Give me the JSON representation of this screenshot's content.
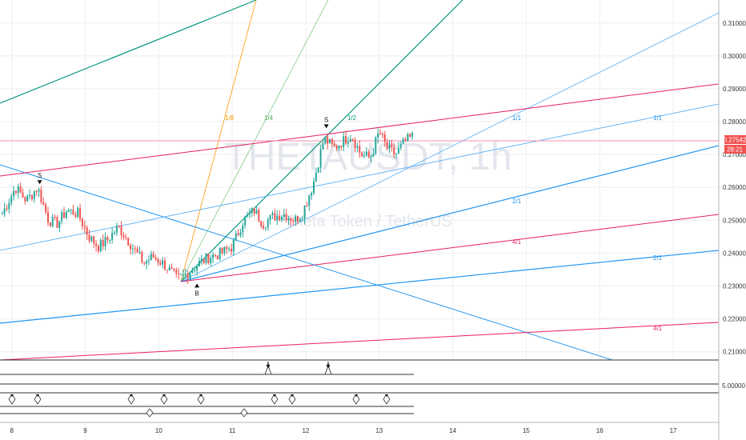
{
  "watermark": {
    "symbol": "THETAUSDT, 1h",
    "description": "Theta Token / TetherUS"
  },
  "price_axis": {
    "current_price": "0.27542",
    "countdown": "28:21",
    "oscillator_tick": "5.00000"
  },
  "colors": {
    "up": "#26a69a",
    "down": "#ef5350",
    "blue_line": "#2196f3",
    "light_blue": "#64b5f6",
    "red_line": "#e91e63",
    "orange_line": "#ff9800",
    "green_line": "#089981",
    "price_badge": "#f05350"
  },
  "chart_data": {
    "type": "candlestick",
    "y_ticks": [
      "0.31000",
      "0.30000",
      "0.29000",
      "0.28000",
      "0.27000",
      "0.26000",
      "0.25000",
      "0.24000",
      "0.23000",
      "0.22000",
      "0.21000"
    ],
    "ylim": [
      0.2075,
      0.317
    ],
    "x_ticks": [
      "8",
      "9",
      "10",
      "11",
      "12",
      "13",
      "14",
      "15",
      "16",
      "17"
    ],
    "x_range": [
      7.84,
      17.62
    ],
    "series": [
      {
        "points": [
          [
            7.87,
            0.252
          ],
          [
            8.05,
            0.26
          ],
          [
            8.2,
            0.256
          ],
          [
            8.35,
            0.26
          ],
          [
            8.5,
            0.25
          ],
          [
            8.62,
            0.249
          ],
          [
            8.75,
            0.253
          ],
          [
            8.9,
            0.252
          ],
          [
            9.05,
            0.245
          ],
          [
            9.18,
            0.242
          ],
          [
            9.3,
            0.244
          ],
          [
            9.45,
            0.248
          ],
          [
            9.58,
            0.244
          ],
          [
            9.7,
            0.24
          ],
          [
            9.8,
            0.237
          ],
          [
            9.92,
            0.239
          ],
          [
            10.05,
            0.237
          ],
          [
            10.18,
            0.234
          ],
          [
            10.25,
            0.232
          ],
          [
            10.4,
            0.234
          ],
          [
            10.55,
            0.237
          ],
          [
            10.7,
            0.239
          ],
          [
            10.85,
            0.24
          ],
          [
            11.0,
            0.242
          ],
          [
            11.15,
            0.25
          ],
          [
            11.3,
            0.253
          ],
          [
            11.42,
            0.249
          ],
          [
            11.55,
            0.251
          ],
          [
            11.7,
            0.252
          ],
          [
            11.85,
            0.25
          ],
          [
            11.95,
            0.252
          ],
          [
            12.1,
            0.261
          ],
          [
            12.25,
            0.275
          ],
          [
            12.38,
            0.272
          ],
          [
            12.5,
            0.274
          ],
          [
            12.62,
            0.276
          ],
          [
            12.75,
            0.27
          ],
          [
            12.88,
            0.269
          ],
          [
            13.0,
            0.277
          ],
          [
            13.1,
            0.272
          ],
          [
            13.22,
            0.27
          ],
          [
            13.35,
            0.274
          ],
          [
            13.45,
            0.2754
          ]
        ]
      }
    ],
    "fan_labels": [
      "1/8",
      "1/4",
      "1/2",
      "1/1",
      "1/1",
      "2/1",
      "2/1",
      "4/1",
      "4/1"
    ],
    "signals": [
      {
        "label": "S",
        "x": 8.38,
        "price": 0.2605
      },
      {
        "label": "S",
        "x": 12.28,
        "price": 0.2775
      },
      {
        "label": "B",
        "x": 10.52,
        "price": 0.2315
      }
    ]
  }
}
